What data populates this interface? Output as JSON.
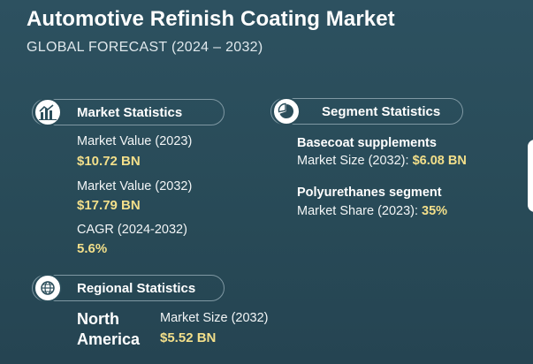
{
  "header": {
    "title": "Automotive Refinish Coating Market",
    "subtitle": "GLOBAL FORECAST (2024 – 2032)"
  },
  "market": {
    "heading": "Market Statistics",
    "icon": "bar-chart-icon",
    "items": [
      {
        "label": "Market Value (2023)",
        "value": "$10.72 BN"
      },
      {
        "label": "Market Value (2032)",
        "value": "$17.79 BN"
      },
      {
        "label": "CAGR (2024-2032)",
        "value": "5.6%"
      }
    ]
  },
  "segment": {
    "heading": "Segment Statistics",
    "icon": "pie-chart-icon",
    "items": [
      {
        "name": "Basecoat supplements",
        "label": "Market Size (2032):",
        "value": "$6.08 BN"
      },
      {
        "name": "Polyurethanes segment",
        "label": "Market Share (2023):",
        "value": "35%"
      }
    ]
  },
  "regional": {
    "heading": "Regional Statistics",
    "icon": "globe-icon",
    "region_line1": "North",
    "region_line2": "America",
    "label": "Market Size (2032)",
    "value": "$5.52 BN"
  },
  "colors": {
    "background": "#2a4d5a",
    "accent_value": "#f3df8a",
    "pill_border": "#7f98a3"
  }
}
